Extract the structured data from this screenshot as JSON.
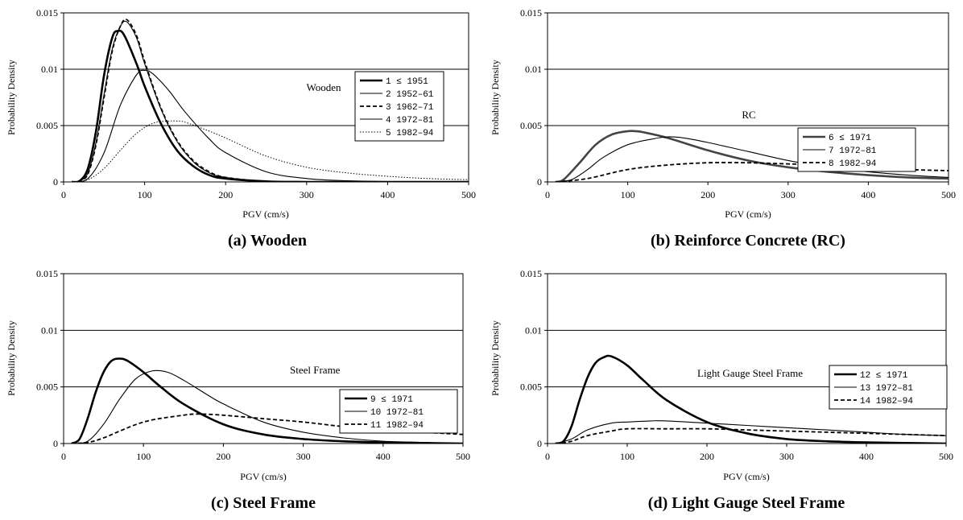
{
  "chart_data": [
    {
      "type": "line",
      "title": "(a) Wooden",
      "annotation": "Wooden",
      "xlabel": "PGV (cm/s)",
      "ylabel": "Probability Density",
      "xlim": [
        0,
        500
      ],
      "ylim": [
        0,
        0.015
      ],
      "xticks": [
        "0",
        "100",
        "200",
        "300",
        "400",
        "500"
      ],
      "yticks": [
        "0",
        "0.005",
        "0.01",
        "0.015"
      ],
      "grid": "horizontal",
      "legend_position": "right",
      "series": [
        {
          "name": "1 ≤ 1951",
          "style": "thick",
          "x": [
            10,
            20,
            30,
            40,
            50,
            60,
            67,
            75,
            90,
            100,
            120,
            140,
            160,
            180,
            200,
            250,
            300,
            500
          ],
          "y": [
            0,
            0.0001,
            0.0012,
            0.0045,
            0.0095,
            0.0128,
            0.0134,
            0.013,
            0.0105,
            0.0085,
            0.0052,
            0.0028,
            0.0014,
            0.0006,
            0.0003,
            5e-05,
            0,
            0
          ]
        },
        {
          "name": "2 1952–61",
          "style": "thin",
          "x": [
            10,
            20,
            30,
            40,
            50,
            60,
            70,
            78,
            90,
            100,
            120,
            140,
            160,
            180,
            200,
            250,
            300,
            500
          ],
          "y": [
            0,
            0.0001,
            0.0008,
            0.0035,
            0.0078,
            0.0118,
            0.0138,
            0.0142,
            0.0128,
            0.0105,
            0.0065,
            0.0036,
            0.0018,
            0.0008,
            0.0004,
            5e-05,
            0,
            0
          ]
        },
        {
          "name": "3 1962–71",
          "style": "dash",
          "x": [
            10,
            20,
            30,
            40,
            50,
            60,
            70,
            78,
            90,
            100,
            120,
            140,
            160,
            180,
            200,
            250,
            300,
            500
          ],
          "y": [
            0,
            0.0001,
            0.0007,
            0.0033,
            0.0075,
            0.0116,
            0.0138,
            0.0144,
            0.013,
            0.0107,
            0.0066,
            0.0037,
            0.0019,
            0.0009,
            0.0004,
            5e-05,
            0,
            0
          ]
        },
        {
          "name": "4 1972–81",
          "style": "thin",
          "x": [
            10,
            30,
            50,
            70,
            90,
            100,
            110,
            130,
            150,
            180,
            200,
            250,
            300,
            350,
            400,
            500
          ],
          "y": [
            0,
            0.0003,
            0.0026,
            0.0068,
            0.0095,
            0.0099,
            0.0096,
            0.0081,
            0.0062,
            0.0038,
            0.0026,
            0.0009,
            0.0003,
            0.0001,
            3e-05,
            0
          ]
        },
        {
          "name": "5 1982–94",
          "style": "dot",
          "x": [
            10,
            30,
            50,
            70,
            90,
            110,
            130,
            140,
            150,
            180,
            200,
            250,
            300,
            350,
            400,
            450,
            500
          ],
          "y": [
            0,
            0.0002,
            0.0012,
            0.0028,
            0.0043,
            0.0052,
            0.0054,
            0.0054,
            0.0053,
            0.0045,
            0.0039,
            0.0023,
            0.0013,
            0.0008,
            0.0005,
            0.0003,
            0.0002
          ]
        }
      ]
    },
    {
      "type": "line",
      "title": "(b) Reinforce Concrete (RC)",
      "annotation": "RC",
      "xlabel": "PGV (cm/s)",
      "ylabel": "Probability Density",
      "xlim": [
        0,
        500
      ],
      "ylim": [
        0,
        0.015
      ],
      "xticks": [
        "0",
        "100",
        "200",
        "300",
        "400",
        "500"
      ],
      "yticks": [
        "0",
        "0.005",
        "0.01",
        "0.015"
      ],
      "grid": "horizontal",
      "legend_position": "right",
      "series": [
        {
          "name": "6 ≤ 1971",
          "style": "thick-gray",
          "x": [
            10,
            20,
            40,
            60,
            80,
            100,
            110,
            120,
            150,
            200,
            250,
            300,
            350,
            400,
            450,
            500
          ],
          "y": [
            0,
            0.0002,
            0.0017,
            0.0033,
            0.0042,
            0.0045,
            0.0045,
            0.0044,
            0.0039,
            0.0028,
            0.0019,
            0.0013,
            0.0009,
            0.0006,
            0.0004,
            0.0003
          ]
        },
        {
          "name": "7 1972–81",
          "style": "thin",
          "x": [
            10,
            30,
            50,
            70,
            100,
            130,
            150,
            170,
            200,
            250,
            300,
            350,
            400,
            450,
            500
          ],
          "y": [
            0,
            0.0002,
            0.0011,
            0.0022,
            0.0033,
            0.0038,
            0.004,
            0.0039,
            0.0035,
            0.0027,
            0.0019,
            0.0013,
            0.0009,
            0.0006,
            0.0004
          ]
        },
        {
          "name": "8 1982–94",
          "style": "dash",
          "x": [
            10,
            50,
            100,
            150,
            200,
            250,
            300,
            350,
            400,
            450,
            500
          ],
          "y": [
            0,
            0.0003,
            0.0011,
            0.0015,
            0.0017,
            0.0017,
            0.0016,
            0.0015,
            0.0013,
            0.0011,
            0.001
          ]
        }
      ]
    },
    {
      "type": "line",
      "title": "(c) Steel Frame",
      "annotation": "Steel Frame",
      "xlabel": "PGV (cm/s)",
      "ylabel": "Probability Density",
      "xlim": [
        0,
        500
      ],
      "ylim": [
        0,
        0.015
      ],
      "xticks": [
        "0",
        "100",
        "200",
        "300",
        "400",
        "500"
      ],
      "yticks": [
        "0",
        "0.005",
        "0.01",
        "0.015"
      ],
      "grid": "horizontal",
      "legend_position": "right",
      "series": [
        {
          "name": "9 ≤ 1971",
          "style": "thick",
          "x": [
            10,
            20,
            30,
            40,
            50,
            60,
            70,
            80,
            100,
            120,
            150,
            200,
            250,
            300,
            350,
            400,
            500
          ],
          "y": [
            0,
            0.0004,
            0.0022,
            0.0045,
            0.0063,
            0.0073,
            0.0075,
            0.0073,
            0.0063,
            0.0051,
            0.0035,
            0.0017,
            0.0008,
            0.0004,
            0.0002,
            0.0001,
            0
          ]
        },
        {
          "name": "10 1972–81",
          "style": "thin",
          "x": [
            10,
            30,
            50,
            70,
            90,
            110,
            130,
            150,
            180,
            200,
            250,
            300,
            350,
            400,
            450,
            500
          ],
          "y": [
            0,
            0.0002,
            0.0017,
            0.0039,
            0.0057,
            0.0064,
            0.0063,
            0.0056,
            0.0043,
            0.0035,
            0.0019,
            0.001,
            0.0005,
            0.0002,
            0.0001,
            0
          ]
        },
        {
          "name": "11 1982–94",
          "style": "dash",
          "x": [
            10,
            30,
            50,
            100,
            150,
            170,
            200,
            250,
            300,
            350,
            400,
            450,
            500
          ],
          "y": [
            0,
            0.0001,
            0.0005,
            0.0019,
            0.0025,
            0.0026,
            0.0025,
            0.0022,
            0.0019,
            0.0015,
            0.0012,
            0.001,
            0.0008
          ]
        }
      ]
    },
    {
      "type": "line",
      "title": "(d) Light Gauge Steel Frame",
      "annotation": "Light Gauge Steel Frame",
      "xlabel": "PGV (cm/s)",
      "ylabel": "Probability Density",
      "xlim": [
        0,
        500
      ],
      "ylim": [
        0,
        0.015
      ],
      "xticks": [
        "0",
        "100",
        "200",
        "300",
        "400",
        "500"
      ],
      "yticks": [
        "0",
        "0.005",
        "0.01",
        "0.015"
      ],
      "grid": "horizontal",
      "legend_position": "right",
      "series": [
        {
          "name": "12 ≤ 1971",
          "style": "thick",
          "x": [
            10,
            20,
            30,
            40,
            50,
            60,
            70,
            80,
            100,
            120,
            150,
            200,
            250,
            300,
            350,
            400,
            500
          ],
          "y": [
            0,
            0.0002,
            0.0015,
            0.0038,
            0.0058,
            0.0071,
            0.0076,
            0.0077,
            0.0069,
            0.0056,
            0.0038,
            0.0019,
            0.0009,
            0.0004,
            0.0002,
            0.0001,
            0
          ]
        },
        {
          "name": "13 1972–81",
          "style": "thin",
          "x": [
            10,
            30,
            50,
            80,
            100,
            130,
            150,
            200,
            250,
            300,
            350,
            400,
            450,
            500
          ],
          "y": [
            0,
            0.0004,
            0.0012,
            0.0018,
            0.0019,
            0.002,
            0.002,
            0.0018,
            0.0016,
            0.0014,
            0.0012,
            0.001,
            0.0008,
            0.0007
          ]
        },
        {
          "name": "14 1982–94",
          "style": "dash",
          "x": [
            10,
            30,
            50,
            80,
            100,
            150,
            200,
            250,
            300,
            350,
            400,
            450,
            500
          ],
          "y": [
            0,
            0.0002,
            0.0007,
            0.0011,
            0.0013,
            0.0013,
            0.0013,
            0.0012,
            0.0011,
            0.001,
            0.0009,
            0.0008,
            0.0007
          ]
        }
      ]
    }
  ]
}
